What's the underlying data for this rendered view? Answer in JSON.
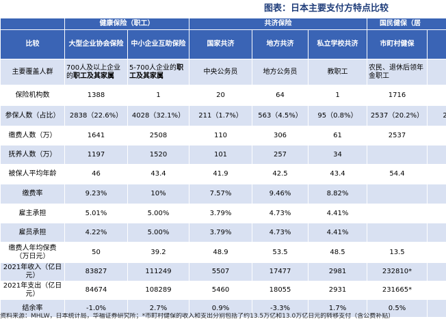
{
  "title": "图表：日本主要支付方特点比较",
  "groups": [
    {
      "label": "健康保险（职工）"
    },
    {
      "label": "共济保险"
    },
    {
      "label": "国民健保（居"
    }
  ],
  "header": {
    "compare": "比较",
    "cols": [
      "大型企业协会保险",
      "中小企业互助保险",
      "国家共济",
      "地方共济",
      "私立学校共济",
      "市町村健保",
      ""
    ]
  },
  "rows": [
    {
      "label": "主要覆盖人群",
      "cells": [
        "700人及以上企业的职工及其家属",
        "5-700人企业的职工及其家属",
        "中央公务员",
        "地方公务员",
        "教职工",
        "农民、退休后领年金职工",
        ""
      ]
    },
    {
      "label": "保险机构数",
      "cells": [
        "1388",
        "1",
        "20",
        "64",
        "1",
        "1716",
        ""
      ]
    },
    {
      "label": "参保人数（占比）",
      "cells": [
        "2838（22.6%）",
        "4028（32.1%）",
        "211（1.7%）",
        "563（4.5%）",
        "95（0.8%）",
        "2537（20.2%）",
        "2"
      ]
    },
    {
      "label": "缴费人数（万）",
      "cells": [
        "1641",
        "2508",
        "110",
        "306",
        "61",
        "2537",
        ""
      ]
    },
    {
      "label": "抚养人数（万）",
      "cells": [
        "1197",
        "1520",
        "101",
        "257",
        "34",
        "",
        ""
      ]
    },
    {
      "label": "被保人平均年龄",
      "cells": [
        "46",
        "43.4",
        "41.9",
        "42.5",
        "43.4",
        "54.4",
        ""
      ]
    },
    {
      "label": "缴费率",
      "cells": [
        "9.23%",
        "10%",
        "7.57%",
        "9.46%",
        "8.82%",
        "",
        ""
      ]
    },
    {
      "label": "雇主承担",
      "cells": [
        "5.01%",
        "5.00%",
        "3.79%",
        "4.73%",
        "4.41%",
        "",
        ""
      ]
    },
    {
      "label": "雇员承担",
      "cells": [
        "4.22%",
        "5.00%",
        "3.79%",
        "4.73%",
        "4.41%",
        "",
        ""
      ]
    },
    {
      "label": "缴费人年均保费（万日元）",
      "cells": [
        "50",
        "39.2",
        "48.9",
        "53.5",
        "48.5",
        "13.5",
        ""
      ]
    },
    {
      "label": "2021年收入（亿日元）",
      "cells": [
        "83827",
        "111249",
        "5507",
        "17477",
        "2981",
        "232810*",
        ""
      ]
    },
    {
      "label": "2021年支出（亿日元）",
      "cells": [
        "84674",
        "108289",
        "5460",
        "18055",
        "2931",
        "231665*",
        ""
      ]
    },
    {
      "label": "结余率",
      "cells": [
        "-1.0%",
        "2.7%",
        "0.9%",
        "-3.3%",
        "1.7%",
        "0.5%",
        ""
      ]
    }
  ],
  "rich": {
    "cov0a": "700人及以上企业的",
    "cov0b": "职工及其家属",
    "cov1a": "5-700人企业的",
    "cov1b": "职",
    "cov1c": "工及其家属"
  },
  "source": "资料来源：MHLW，日本统计局，华福证券研究所；*市町村健保的收入和支出分别包括了约13.5万亿和13.0万亿日元的转移支付（含公费补贴）"
}
